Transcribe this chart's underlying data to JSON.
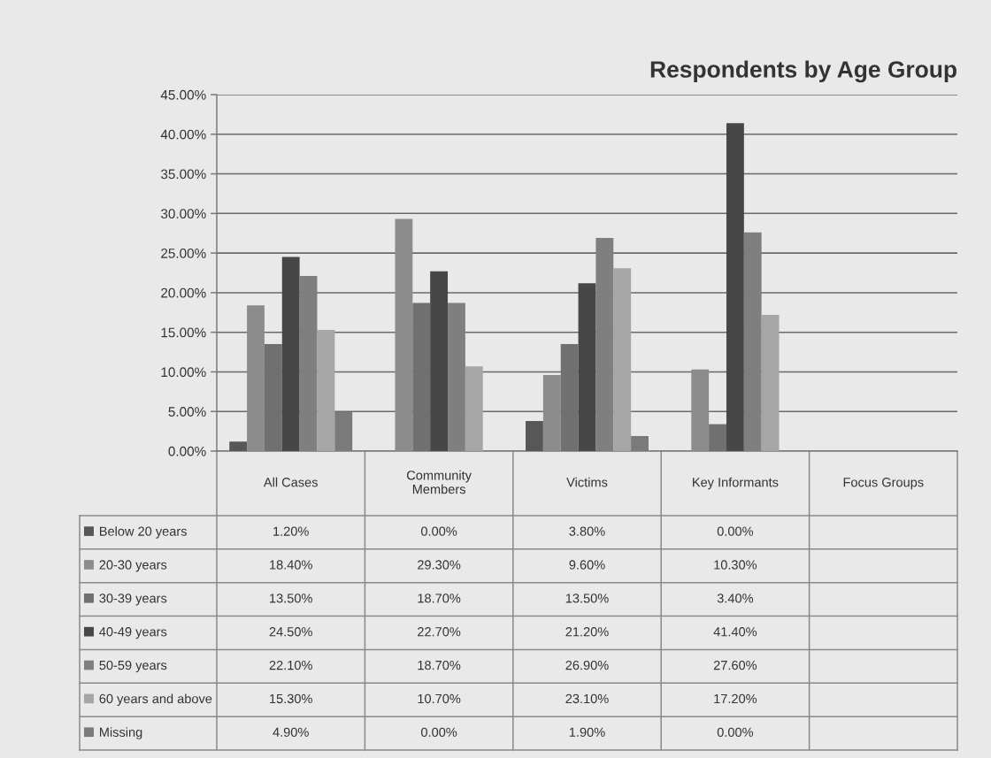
{
  "chart_data": {
    "type": "bar",
    "title": "Respondents by Age Group",
    "categories": [
      "All Cases",
      "Community\nMembers",
      "Victims",
      "Key Informants",
      "Focus Groups"
    ],
    "series": [
      {
        "name": "Below 20 years",
        "color": "#575757",
        "values": [
          1.2,
          0,
          3.8,
          0,
          null
        ],
        "value_labels": [
          "1.20%",
          "0.00%",
          "3.80%",
          "0.00%",
          null
        ]
      },
      {
        "name": "20-30 years",
        "color": "#8c8c8c",
        "values": [
          18.4,
          29.3,
          9.6,
          10.3,
          null
        ],
        "value_labels": [
          "18.40%",
          "29.30%",
          "9.60%",
          "10.30%",
          null
        ]
      },
      {
        "name": "30-39 years",
        "color": "#707070",
        "values": [
          13.5,
          18.7,
          13.5,
          3.4,
          null
        ],
        "value_labels": [
          "13.50%",
          "18.70%",
          "13.50%",
          "3.40%",
          null
        ]
      },
      {
        "name": "40-49 years",
        "color": "#474747",
        "values": [
          24.5,
          22.7,
          21.2,
          41.4,
          null
        ],
        "value_labels": [
          "24.50%",
          "22.70%",
          "21.20%",
          "41.40%",
          null
        ]
      },
      {
        "name": "50-59 years",
        "color": "#7f7f7f",
        "values": [
          22.1,
          18.7,
          26.9,
          27.6,
          null
        ],
        "value_labels": [
          "22.10%",
          "18.70%",
          "26.90%",
          "27.60%",
          null
        ]
      },
      {
        "name": "60 years and above",
        "color": "#a6a6a6",
        "values": [
          15.3,
          10.7,
          23.1,
          17.2,
          null
        ],
        "value_labels": [
          "15.30%",
          "10.70%",
          "23.10%",
          "17.20%",
          null
        ]
      },
      {
        "name": "Missing",
        "color": "#7a7a7a",
        "values": [
          4.9,
          0,
          1.9,
          0,
          null
        ],
        "value_labels": [
          "4.90%",
          "0.00%",
          "1.90%",
          "0.00%",
          null
        ]
      }
    ],
    "ylim": [
      0,
      45
    ],
    "yticks": [
      {
        "value": 0,
        "label": "0.00%"
      },
      {
        "value": 5,
        "label": "5.00%"
      },
      {
        "value": 10,
        "label": "10.00%"
      },
      {
        "value": 15,
        "label": "15.00%"
      },
      {
        "value": 20,
        "label": "20.00%"
      },
      {
        "value": 25,
        "label": "25.00%"
      },
      {
        "value": 30,
        "label": "30.00%"
      },
      {
        "value": 35,
        "label": "35.00%"
      },
      {
        "value": 40,
        "label": "40.00%"
      },
      {
        "value": 45,
        "label": "45.00%"
      }
    ],
    "grid": "y",
    "legend": "bottom"
  }
}
